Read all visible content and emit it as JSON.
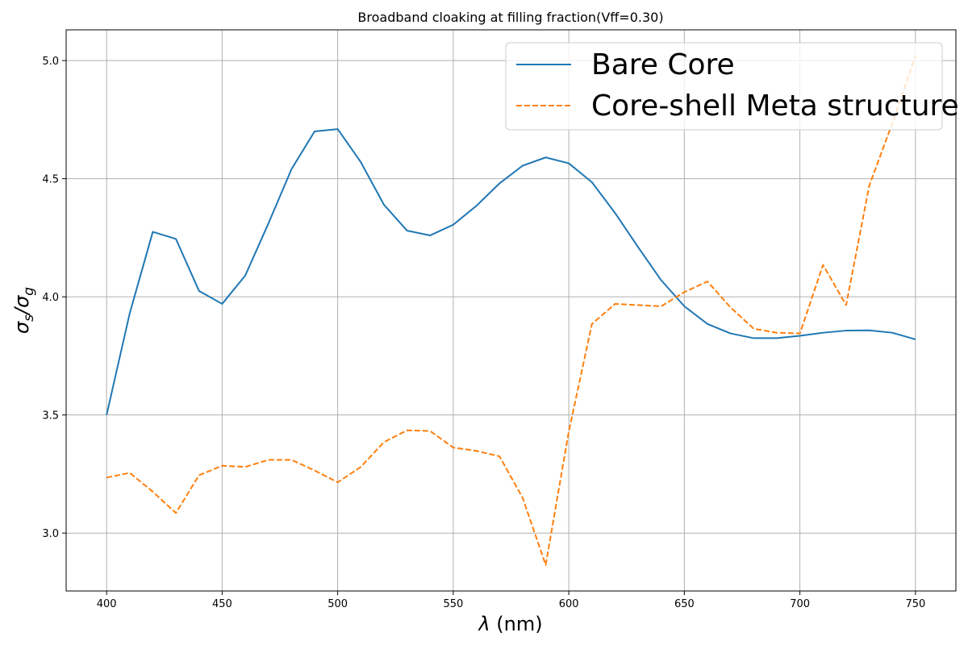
{
  "chart_data": {
    "type": "line",
    "title": "Broadband cloaking at filling fraction(Vff=0.30)",
    "xlabel_symbol": "λ",
    "xlabel_unit": " (nm)",
    "ylabel_main": "σ",
    "ylabel_sub1": "s",
    "ylabel_sep": "/σ",
    "ylabel_sub2": "g",
    "xlim": [
      382.5,
      767.5
    ],
    "ylim": [
      2.755,
      5.13
    ],
    "xticks": [
      400,
      450,
      500,
      550,
      600,
      650,
      700,
      750
    ],
    "yticks": [
      3.0,
      3.5,
      4.0,
      4.5,
      5.0
    ],
    "ytick_labels": [
      "3.0",
      "3.5",
      "4.0",
      "4.5",
      "5.0"
    ],
    "grid": true,
    "legend_position": "top-right",
    "x": [
      400,
      410,
      420,
      430,
      440,
      450,
      460,
      470,
      480,
      490,
      500,
      510,
      520,
      530,
      540,
      550,
      560,
      570,
      580,
      590,
      600,
      610,
      620,
      630,
      640,
      650,
      660,
      670,
      680,
      690,
      700,
      710,
      720,
      730,
      740,
      750
    ],
    "series": [
      {
        "name": "Bare Core",
        "color": "#1f77b4",
        "style": "solid",
        "values": [
          3.5,
          3.93,
          4.275,
          4.245,
          4.025,
          3.97,
          4.09,
          4.31,
          4.54,
          4.7,
          4.71,
          4.57,
          4.39,
          4.28,
          4.26,
          4.305,
          4.385,
          4.48,
          4.555,
          4.59,
          4.565,
          4.485,
          4.355,
          4.21,
          4.07,
          3.96,
          3.885,
          3.845,
          3.825,
          3.825,
          3.835,
          3.848,
          3.857,
          3.858,
          3.848,
          3.82
        ]
      },
      {
        "name": "Core-shell Meta structure",
        "color": "#ff7f0e",
        "style": "dashed",
        "values": [
          3.235,
          3.255,
          3.175,
          3.085,
          3.245,
          3.285,
          3.28,
          3.31,
          3.31,
          3.265,
          3.215,
          3.28,
          3.385,
          3.435,
          3.432,
          3.362,
          3.348,
          3.325,
          3.15,
          2.865,
          3.43,
          3.885,
          3.97,
          3.965,
          3.96,
          4.02,
          4.065,
          3.955,
          3.865,
          3.848,
          3.845,
          4.135,
          3.965,
          4.47,
          4.735,
          5.02
        ]
      }
    ]
  }
}
